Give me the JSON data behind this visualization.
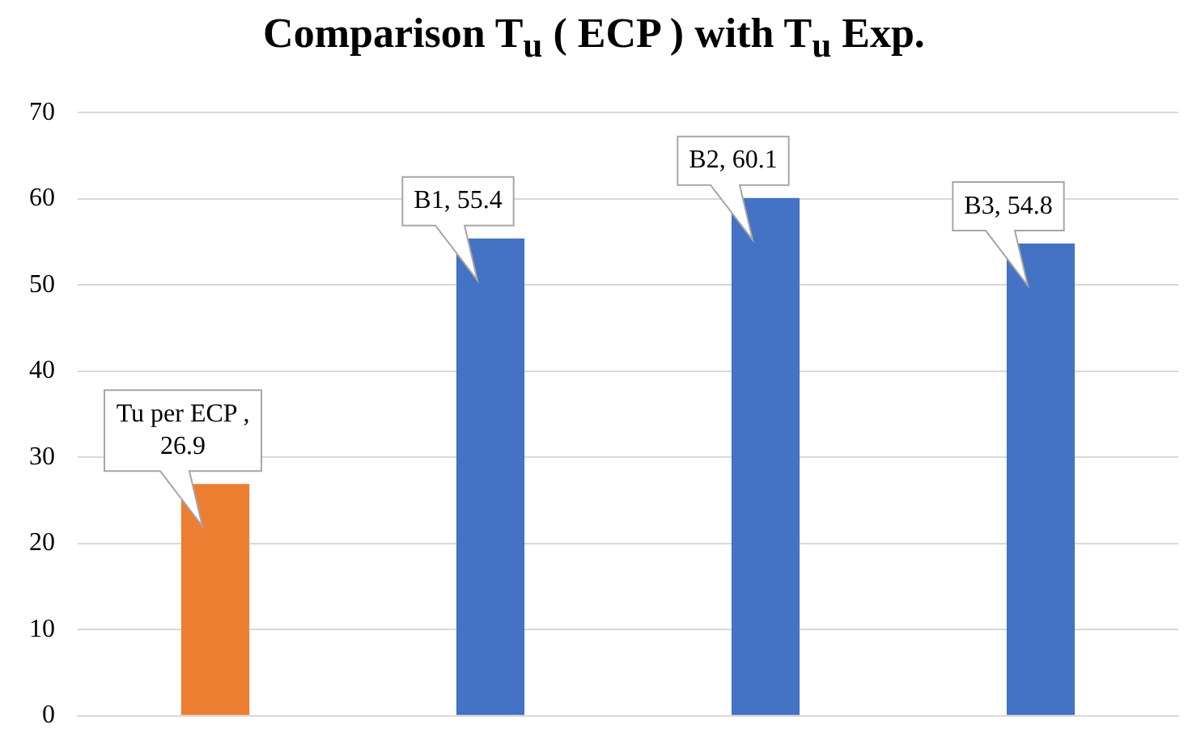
{
  "chart_data": {
    "type": "bar",
    "title": "Comparison T$_{u}$ ( ECP ) with T$_{u}$ Exp.",
    "categories": [
      null,
      null,
      null,
      null
    ],
    "values": [
      26.9,
      55.4,
      60.1,
      54.8
    ],
    "colors": [
      "#ed7d31",
      "#4472c4",
      "#4472c4",
      "#4472c4"
    ],
    "value_labels": [
      "Tu per ECP , 26.9",
      "B1, 55.4",
      "B2, 60.1",
      "B3, 54.8"
    ],
    "ylim": [
      0,
      70
    ],
    "yticks": [
      0,
      10,
      20,
      30,
      40,
      50,
      60,
      70
    ],
    "grid": "y",
    "legend": false
  }
}
